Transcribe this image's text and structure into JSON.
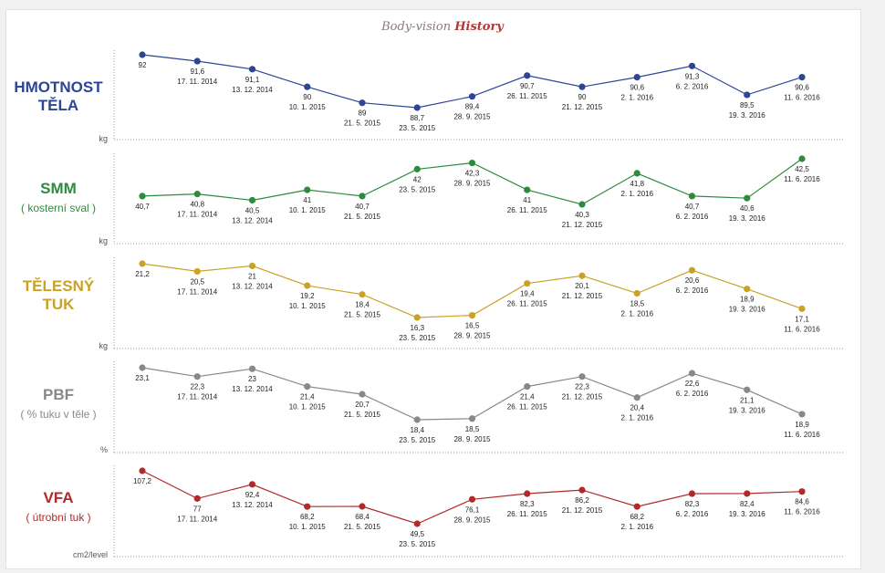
{
  "title": {
    "part1": "Body-vision",
    "part2": "History"
  },
  "chart_data": [
    {
      "type": "line",
      "label_main": "HMOTNOST TĚLA",
      "label_sub": "",
      "unit": "kg",
      "color": "#2c4595",
      "dates": [
        "",
        "17. 11. 2014",
        "13. 12. 2014",
        "10. 1. 2015",
        "21. 5. 2015",
        "23. 5. 2015",
        "28. 9. 2015",
        "26. 11. 2015",
        "21. 12. 2015",
        "2. 1. 2016",
        "6. 2. 2016",
        "19. 3. 2016",
        "11. 6. 2016"
      ],
      "value_labels": [
        "92",
        "91,6",
        "91,1",
        "90",
        "89",
        "88,7",
        "89,4",
        "90,7",
        "90",
        "90,6",
        "91,3",
        "89,5",
        "90,6"
      ],
      "values": [
        92,
        91.6,
        91.1,
        90,
        89,
        88.7,
        89.4,
        90.7,
        90,
        90.6,
        91.3,
        89.5,
        90.6
      ]
    },
    {
      "type": "line",
      "label_main": "SMM",
      "label_sub": "( kosterní sval )",
      "unit": "kg",
      "color": "#2e8b3e",
      "dates": [
        "",
        "17. 11. 2014",
        "13. 12. 2014",
        "10. 1. 2015",
        "21. 5. 2015",
        "23. 5. 2015",
        "28. 9. 2015",
        "26. 11. 2015",
        "21. 12. 2015",
        "2. 1. 2016",
        "6. 2. 2016",
        "19. 3. 2016",
        "11. 6. 2016"
      ],
      "value_labels": [
        "40,7",
        "40,8",
        "40,5",
        "41",
        "40,7",
        "42",
        "42,3",
        "41",
        "40,3",
        "41,8",
        "40,7",
        "40,6",
        "42,5"
      ],
      "values": [
        40.7,
        40.8,
        40.5,
        41,
        40.7,
        42,
        42.3,
        41,
        40.3,
        41.8,
        40.7,
        40.6,
        42.5
      ]
    },
    {
      "type": "line",
      "label_main": "TĚLESNÝ TUK",
      "label_sub": "",
      "unit": "kg",
      "color": "#c9a227",
      "dates": [
        "",
        "17. 11. 2014",
        "13. 12. 2014",
        "10. 1. 2015",
        "21. 5. 2015",
        "23. 5. 2015",
        "28. 9. 2015",
        "26. 11. 2015",
        "21. 12. 2015",
        "2. 1. 2016",
        "6. 2. 2016",
        "19. 3. 2016",
        "11. 6. 2016"
      ],
      "value_labels": [
        "21,2",
        "20,5",
        "21",
        "19,2",
        "18,4",
        "16,3",
        "16,5",
        "19,4",
        "20,1",
        "18,5",
        "20,6",
        "18,9",
        "17,1"
      ],
      "values": [
        21.2,
        20.5,
        21,
        19.2,
        18.4,
        16.3,
        16.5,
        19.4,
        20.1,
        18.5,
        20.6,
        18.9,
        17.1
      ]
    },
    {
      "type": "line",
      "label_main": "PBF",
      "label_sub": "( % tuku v těle )",
      "unit": "%",
      "color": "#888888",
      "dates": [
        "",
        "17. 11. 2014",
        "13. 12. 2014",
        "10. 1. 2015",
        "21. 5. 2015",
        "23. 5. 2015",
        "28. 9. 2015",
        "26. 11. 2015",
        "21. 12. 2015",
        "2. 1. 2016",
        "6. 2. 2016",
        "19. 3. 2016",
        "11. 6. 2016"
      ],
      "value_labels": [
        "23,1",
        "22,3",
        "23",
        "21,4",
        "20,7",
        "18,4",
        "18,5",
        "21,4",
        "22,3",
        "20,4",
        "22,6",
        "21,1",
        "18,9"
      ],
      "values": [
        23.1,
        22.3,
        23,
        21.4,
        20.7,
        18.4,
        18.5,
        21.4,
        22.3,
        20.4,
        22.6,
        21.1,
        18.9
      ]
    },
    {
      "type": "line",
      "label_main": "VFA",
      "label_sub": "( útrobní tuk )",
      "unit": "cm2/level",
      "color": "#b02a2a",
      "dates": [
        "",
        "17. 11. 2014",
        "13. 12. 2014",
        "10. 1. 2015",
        "21. 5. 2015",
        "23. 5. 2015",
        "28. 9. 2015",
        "26. 11. 2015",
        "21. 12. 2015",
        "2. 1. 2016",
        "6. 2. 2016",
        "19. 3. 2016",
        "11. 6. 2016"
      ],
      "value_labels": [
        "107,2",
        "77",
        "92,4",
        "68,2",
        "68,4",
        "49,5",
        "76,1",
        "82,3",
        "86,2",
        "68,2",
        "82,3",
        "82,4",
        "84,6"
      ],
      "values": [
        107.2,
        77,
        92.4,
        68.2,
        68.4,
        49.5,
        76.1,
        82.3,
        86.2,
        68.2,
        82.3,
        82.4,
        84.6
      ]
    }
  ]
}
